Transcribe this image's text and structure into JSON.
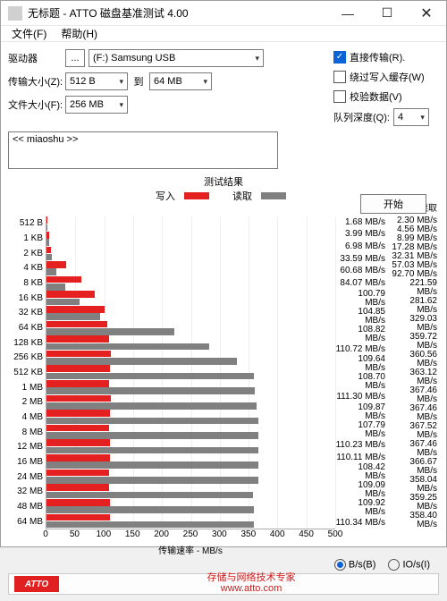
{
  "window": {
    "title": "无标题 - ATTO 磁盘基准测试 4.00"
  },
  "menu": {
    "file": "文件(F)",
    "help": "帮助(H)"
  },
  "controls": {
    "drive_label": "驱动器",
    "drive_btn": "...",
    "drive_value": "(F:) Samsung USB",
    "xfer_label": "传输大小(Z):",
    "xfer_from": "512 B",
    "xfer_to_lbl": "到",
    "xfer_to": "64 MB",
    "file_label": "文件大小(F):",
    "file_value": "256 MB"
  },
  "options": {
    "direct": "直接传输(R).",
    "bypass": "绕过写入缓存(W)",
    "verify": "校验数据(V)",
    "queue_label": "队列深度(Q):",
    "queue_value": "4",
    "direct_checked": true,
    "bypass_checked": false,
    "verify_checked": false
  },
  "desc": "<< miaoshu >>",
  "start": "开始",
  "results": {
    "title": "测试结果",
    "legend_write": "写入",
    "legend_read": "读取",
    "write_color": "#e42020",
    "read_color": "#808080",
    "col_write": "写入",
    "col_read": "读取",
    "unit_suffix": " MB/s",
    "xaxis_label": "传输速率 - MB/s",
    "xmax": 500,
    "xticks": [
      0,
      50,
      100,
      150,
      200,
      250,
      300,
      350,
      400,
      450,
      500
    ],
    "rows": [
      {
        "label": "512 B",
        "write": 1.68,
        "read": 2.3
      },
      {
        "label": "1 KB",
        "write": 3.99,
        "read": 4.56
      },
      {
        "label": "2 KB",
        "write": 6.98,
        "read": 8.99
      },
      {
        "label": "4 KB",
        "write": 33.59,
        "read": 17.28
      },
      {
        "label": "8 KB",
        "write": 60.68,
        "read": 32.31
      },
      {
        "label": "16 KB",
        "write": 84.07,
        "read": 57.03
      },
      {
        "label": "32 KB",
        "write": 100.79,
        "read": 92.7
      },
      {
        "label": "64 KB",
        "write": 104.85,
        "read": 221.59
      },
      {
        "label": "128 KB",
        "write": 108.82,
        "read": 281.62
      },
      {
        "label": "256 KB",
        "write": 110.72,
        "read": 329.03
      },
      {
        "label": "512 KB",
        "write": 109.64,
        "read": 359.72
      },
      {
        "label": "1 MB",
        "write": 108.7,
        "read": 360.56
      },
      {
        "label": "2 MB",
        "write": 111.3,
        "read": 363.12
      },
      {
        "label": "4 MB",
        "write": 109.87,
        "read": 367.46
      },
      {
        "label": "8 MB",
        "write": 107.79,
        "read": 367.46
      },
      {
        "label": "12 MB",
        "write": 110.23,
        "read": 367.52
      },
      {
        "label": "16 MB",
        "write": 110.11,
        "read": 367.46
      },
      {
        "label": "24 MB",
        "write": 108.42,
        "read": 366.67
      },
      {
        "label": "32 MB",
        "write": 109.09,
        "read": 358.04
      },
      {
        "label": "48 MB",
        "write": 109.92,
        "read": 359.25
      },
      {
        "label": "64 MB",
        "write": 110.34,
        "read": 358.4
      }
    ]
  },
  "units": {
    "bs": "B/s(B)",
    "ios": "IO/s(I)",
    "selected": "bs"
  },
  "footer": {
    "logo": "ATTO",
    "line1": "存储与网络技术专家",
    "line2": "www.atto.com"
  }
}
